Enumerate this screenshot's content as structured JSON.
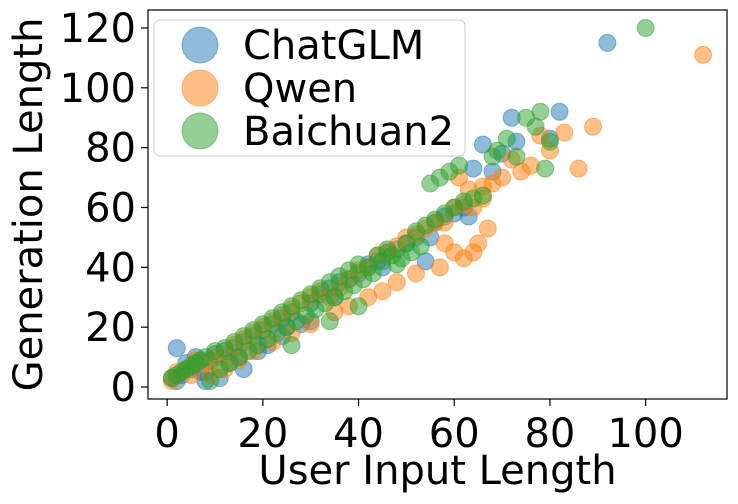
{
  "chart_data": {
    "type": "scatter",
    "xlabel": "User Input Length",
    "ylabel": "Generation Length",
    "xlim": [
      -4,
      117
    ],
    "ylim": [
      -4,
      126
    ],
    "xticks": [
      0,
      20,
      40,
      60,
      80,
      100
    ],
    "yticks": [
      0,
      20,
      40,
      60,
      80,
      100,
      120
    ],
    "grid": false,
    "legend_position": "top-left",
    "series": [
      {
        "name": "ChatGLM",
        "color": "#1f77b4",
        "points": [
          [
            1,
            3
          ],
          [
            2,
            2
          ],
          [
            3,
            4
          ],
          [
            2,
            13
          ],
          [
            4,
            8
          ],
          [
            5,
            6
          ],
          [
            6,
            10
          ],
          [
            7,
            5
          ],
          [
            8,
            2
          ],
          [
            9,
            9
          ],
          [
            10,
            11
          ],
          [
            12,
            12
          ],
          [
            14,
            13
          ],
          [
            16,
            15
          ],
          [
            18,
            17
          ],
          [
            20,
            19
          ],
          [
            22,
            21
          ],
          [
            24,
            23
          ],
          [
            26,
            25
          ],
          [
            28,
            21
          ],
          [
            30,
            28
          ],
          [
            32,
            31
          ],
          [
            34,
            33
          ],
          [
            36,
            35
          ],
          [
            38,
            36
          ],
          [
            40,
            38
          ],
          [
            42,
            41
          ],
          [
            44,
            42
          ],
          [
            46,
            45
          ],
          [
            48,
            46
          ],
          [
            50,
            48
          ],
          [
            52,
            50
          ],
          [
            54,
            42
          ],
          [
            56,
            55
          ],
          [
            58,
            57
          ],
          [
            60,
            58
          ],
          [
            62,
            60
          ],
          [
            64,
            73
          ],
          [
            66,
            81
          ],
          [
            68,
            72
          ],
          [
            72,
            90
          ],
          [
            73,
            82
          ],
          [
            80,
            83
          ],
          [
            82,
            92
          ],
          [
            92,
            115
          ],
          [
            15,
            10
          ],
          [
            25,
            20
          ],
          [
            35,
            30
          ],
          [
            45,
            40
          ],
          [
            55,
            50
          ],
          [
            63,
            57
          ],
          [
            70,
            78
          ],
          [
            16,
            6
          ],
          [
            19,
            12
          ],
          [
            24,
            17
          ],
          [
            30,
            22
          ],
          [
            8,
            5
          ],
          [
            11,
            3
          ],
          [
            13,
            8
          ],
          [
            21,
            14
          ]
        ]
      },
      {
        "name": "Qwen",
        "color": "#ff7f0e",
        "points": [
          [
            1,
            2
          ],
          [
            2,
            5
          ],
          [
            4,
            6
          ],
          [
            5,
            4
          ],
          [
            6,
            9
          ],
          [
            8,
            8
          ],
          [
            10,
            10
          ],
          [
            12,
            11
          ],
          [
            14,
            14
          ],
          [
            16,
            16
          ],
          [
            18,
            18
          ],
          [
            20,
            20
          ],
          [
            22,
            22
          ],
          [
            24,
            24
          ],
          [
            26,
            26
          ],
          [
            28,
            28
          ],
          [
            30,
            30
          ],
          [
            32,
            32
          ],
          [
            34,
            30
          ],
          [
            36,
            33
          ],
          [
            38,
            36
          ],
          [
            40,
            39
          ],
          [
            42,
            40
          ],
          [
            44,
            44
          ],
          [
            46,
            45
          ],
          [
            48,
            47
          ],
          [
            50,
            50
          ],
          [
            52,
            51
          ],
          [
            54,
            53
          ],
          [
            56,
            55
          ],
          [
            58,
            55
          ],
          [
            60,
            60
          ],
          [
            62,
            61
          ],
          [
            64,
            60
          ],
          [
            66,
            63
          ],
          [
            68,
            68
          ],
          [
            70,
            70
          ],
          [
            72,
            76
          ],
          [
            74,
            72
          ],
          [
            76,
            74
          ],
          [
            78,
            84
          ],
          [
            80,
            79
          ],
          [
            83,
            85
          ],
          [
            86,
            73
          ],
          [
            89,
            87
          ],
          [
            112,
            111
          ],
          [
            58,
            48
          ],
          [
            60,
            45
          ],
          [
            62,
            43
          ],
          [
            64,
            45
          ],
          [
            65,
            48
          ],
          [
            67,
            53
          ],
          [
            57,
            40
          ],
          [
            52,
            38
          ],
          [
            48,
            35
          ],
          [
            45,
            32
          ],
          [
            42,
            30
          ],
          [
            38,
            27
          ],
          [
            35,
            25
          ],
          [
            30,
            21
          ],
          [
            26,
            18
          ],
          [
            22,
            15
          ],
          [
            18,
            12
          ],
          [
            15,
            9
          ],
          [
            12,
            6
          ],
          [
            9,
            4
          ],
          [
            61,
            70
          ],
          [
            63,
            66
          ],
          [
            66,
            67
          ]
        ]
      },
      {
        "name": "Baichuan2",
        "color": "#2ca02c",
        "points": [
          [
            1,
            3
          ],
          [
            2,
            4
          ],
          [
            3,
            5
          ],
          [
            4,
            6
          ],
          [
            5,
            7
          ],
          [
            6,
            8
          ],
          [
            7,
            9
          ],
          [
            8,
            10
          ],
          [
            9,
            2
          ],
          [
            10,
            12
          ],
          [
            12,
            13
          ],
          [
            14,
            15
          ],
          [
            16,
            17
          ],
          [
            18,
            19
          ],
          [
            20,
            21
          ],
          [
            22,
            23
          ],
          [
            24,
            25
          ],
          [
            26,
            27
          ],
          [
            28,
            29
          ],
          [
            30,
            31
          ],
          [
            32,
            33
          ],
          [
            34,
            35
          ],
          [
            36,
            37
          ],
          [
            38,
            39
          ],
          [
            40,
            41
          ],
          [
            42,
            40
          ],
          [
            44,
            44
          ],
          [
            46,
            46
          ],
          [
            48,
            41
          ],
          [
            50,
            48
          ],
          [
            52,
            52
          ],
          [
            54,
            54
          ],
          [
            56,
            56
          ],
          [
            58,
            58
          ],
          [
            60,
            60
          ],
          [
            62,
            62
          ],
          [
            64,
            63
          ],
          [
            66,
            64
          ],
          [
            68,
            77
          ],
          [
            69,
            79
          ],
          [
            71,
            83
          ],
          [
            73,
            77
          ],
          [
            75,
            90
          ],
          [
            77,
            87
          ],
          [
            78,
            92
          ],
          [
            79,
            73
          ],
          [
            80,
            82
          ],
          [
            100,
            120
          ],
          [
            55,
            68
          ],
          [
            57,
            70
          ],
          [
            59,
            72
          ],
          [
            61,
            74
          ],
          [
            47,
            44
          ],
          [
            49,
            43
          ],
          [
            51,
            45
          ],
          [
            53,
            47
          ],
          [
            45,
            42
          ],
          [
            43,
            38
          ],
          [
            41,
            36
          ],
          [
            39,
            34
          ],
          [
            37,
            32
          ],
          [
            35,
            30
          ],
          [
            33,
            28
          ],
          [
            31,
            26
          ],
          [
            29,
            24
          ],
          [
            27,
            22
          ],
          [
            25,
            20
          ],
          [
            23,
            18
          ],
          [
            21,
            16
          ],
          [
            19,
            14
          ],
          [
            17,
            12
          ],
          [
            15,
            10
          ],
          [
            13,
            8
          ],
          [
            11,
            6
          ],
          [
            26,
            14
          ],
          [
            34,
            22
          ],
          [
            40,
            27
          ]
        ]
      }
    ]
  }
}
